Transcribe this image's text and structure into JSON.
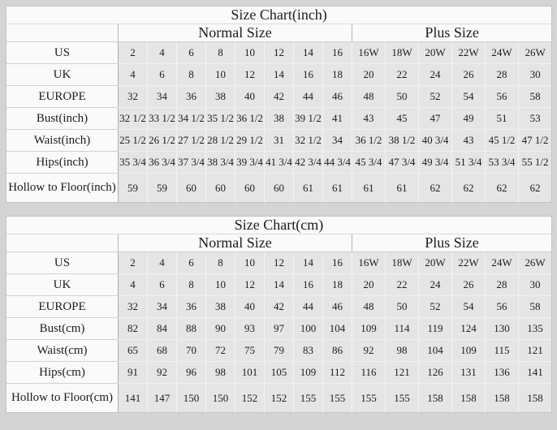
{
  "colors": {
    "page_background": "#d4d4d4",
    "data_cell_background": "#e5e5e5",
    "header_cell_background": "#fafafa",
    "text": "#1c1c1c"
  },
  "chart_data": [
    {
      "type": "table",
      "title": "Size Chart(inch)",
      "group_headers": {
        "normal": "Normal Size",
        "plus": "Plus Size"
      },
      "rows": [
        {
          "label": "US",
          "normal": [
            "2",
            "4",
            "6",
            "8",
            "10",
            "12",
            "14",
            "16"
          ],
          "plus": [
            "16W",
            "18W",
            "20W",
            "22W",
            "24W",
            "26W"
          ]
        },
        {
          "label": "UK",
          "normal": [
            "4",
            "6",
            "8",
            "10",
            "12",
            "14",
            "16",
            "18"
          ],
          "plus": [
            "20",
            "22",
            "24",
            "26",
            "28",
            "30"
          ]
        },
        {
          "label": "EUROPE",
          "normal": [
            "32",
            "34",
            "36",
            "38",
            "40",
            "42",
            "44",
            "46"
          ],
          "plus": [
            "48",
            "50",
            "52",
            "54",
            "56",
            "58"
          ]
        },
        {
          "label": "Bust(inch)",
          "normal": [
            "32 1/2",
            "33 1/2",
            "34 1/2",
            "35 1/2",
            "36 1/2",
            "38",
            "39 1/2",
            "41"
          ],
          "plus": [
            "43",
            "45",
            "47",
            "49",
            "51",
            "53"
          ]
        },
        {
          "label": "Waist(inch)",
          "normal": [
            "25 1/2",
            "26 1/2",
            "27 1/2",
            "28 1/2",
            "29 1/2",
            "31",
            "32 1/2",
            "34"
          ],
          "plus": [
            "36 1/2",
            "38 1/2",
            "40 3/4",
            "43",
            "45 1/2",
            "47 1/2"
          ]
        },
        {
          "label": "Hips(inch)",
          "normal": [
            "35 3/4",
            "36 3/4",
            "37 3/4",
            "38 3/4",
            "39 3/4",
            "41 3/4",
            "42 3/4",
            "44 3/4"
          ],
          "plus": [
            "45 3/4",
            "47 3/4",
            "49 3/4",
            "51 3/4",
            "53 3/4",
            "55 1/2"
          ]
        },
        {
          "label": "Hollow to Floor(inch)",
          "normal": [
            "59",
            "59",
            "60",
            "60",
            "60",
            "60",
            "61",
            "61"
          ],
          "plus": [
            "61",
            "61",
            "62",
            "62",
            "62",
            "62"
          ]
        }
      ]
    },
    {
      "type": "table",
      "title": "Size Chart(cm)",
      "group_headers": {
        "normal": "Normal Size",
        "plus": "Plus Size"
      },
      "rows": [
        {
          "label": "US",
          "normal": [
            "2",
            "4",
            "6",
            "8",
            "10",
            "12",
            "14",
            "16"
          ],
          "plus": [
            "16W",
            "18W",
            "20W",
            "22W",
            "24W",
            "26W"
          ]
        },
        {
          "label": "UK",
          "normal": [
            "4",
            "6",
            "8",
            "10",
            "12",
            "14",
            "16",
            "18"
          ],
          "plus": [
            "20",
            "22",
            "24",
            "26",
            "28",
            "30"
          ]
        },
        {
          "label": "EUROPE",
          "normal": [
            "32",
            "34",
            "36",
            "38",
            "40",
            "42",
            "44",
            "46"
          ],
          "plus": [
            "48",
            "50",
            "52",
            "54",
            "56",
            "58"
          ]
        },
        {
          "label": "Bust(cm)",
          "normal": [
            "82",
            "84",
            "88",
            "90",
            "93",
            "97",
            "100",
            "104"
          ],
          "plus": [
            "109",
            "114",
            "119",
            "124",
            "130",
            "135"
          ]
        },
        {
          "label": "Waist(cm)",
          "normal": [
            "65",
            "68",
            "70",
            "72",
            "75",
            "79",
            "83",
            "86"
          ],
          "plus": [
            "92",
            "98",
            "104",
            "109",
            "115",
            "121"
          ]
        },
        {
          "label": "Hips(cm)",
          "normal": [
            "91",
            "92",
            "96",
            "98",
            "101",
            "105",
            "109",
            "112"
          ],
          "plus": [
            "116",
            "121",
            "126",
            "131",
            "136",
            "141"
          ]
        },
        {
          "label": "Hollow to Floor(cm)",
          "normal": [
            "141",
            "147",
            "150",
            "150",
            "152",
            "152",
            "155",
            "155"
          ],
          "plus": [
            "155",
            "155",
            "158",
            "158",
            "158",
            "158"
          ]
        }
      ]
    }
  ]
}
